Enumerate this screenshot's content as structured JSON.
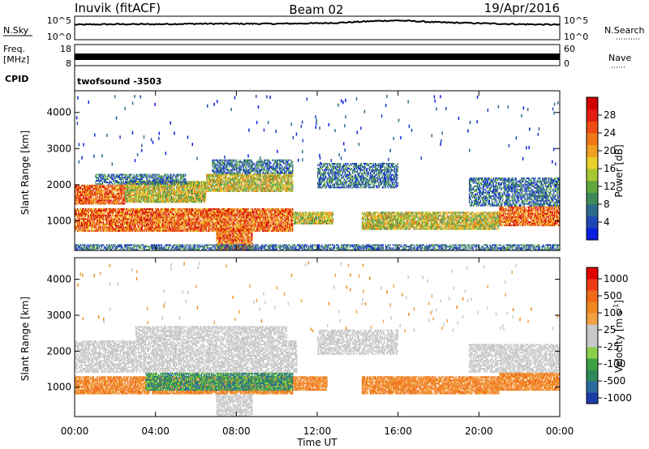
{
  "header": {
    "station": "Inuvik (fitACF)",
    "beam": "Beam 02",
    "date": "19/Apr/2016"
  },
  "side_labels": {
    "nsky": "N.Sky",
    "freq_line1": "Freq.",
    "freq_line2": "[MHz]",
    "cpid": "CPID",
    "nsearch": "N.Search",
    "nave": "Nave"
  },
  "cpid_value": "twofsound -3503",
  "chart_data": [
    {
      "type": "line",
      "name": "noise",
      "y_left_ticks": [
        "10^5",
        "10^0"
      ],
      "y_right_ticks": [
        "10^5",
        "10^0"
      ],
      "series": [
        {
          "name": "N.Sky",
          "x_hours": [
            0,
            2,
            4,
            6,
            8,
            10,
            12,
            13,
            14,
            15,
            16,
            17,
            18,
            20,
            22,
            24
          ],
          "values_log10": [
            3.2,
            3.3,
            3.3,
            3.4,
            3.4,
            3.4,
            3.5,
            3.6,
            3.8,
            4.0,
            4.1,
            3.9,
            3.7,
            3.5,
            3.3,
            3.2
          ]
        }
      ]
    },
    {
      "type": "line",
      "name": "frequency-nave",
      "y_left_ticks": [
        "18",
        "8"
      ],
      "y_right_ticks": [
        "60",
        "0"
      ],
      "series": [
        {
          "name": "Freq",
          "x_hours": [
            0,
            24
          ],
          "values": [
            11.5,
            11.5
          ]
        },
        {
          "name": "Nave",
          "x_hours": [
            0,
            24
          ],
          "values": [
            30,
            30
          ]
        }
      ]
    },
    {
      "type": "heatmap",
      "name": "power",
      "xlabel": "Time UT",
      "ylabel": "Slant Range [km]",
      "x_ticks": [
        "00:00",
        "04:00",
        "08:00",
        "12:00",
        "16:00",
        "20:00",
        "00:00"
      ],
      "y_ticks": [
        1000,
        2000,
        3000,
        4000
      ],
      "ylim": [
        180,
        4600
      ],
      "xlim_hours": [
        0,
        24
      ],
      "colorbar": {
        "label": "Power [dB]",
        "ticks": [
          "4",
          "8",
          "12",
          "16",
          "20",
          "24",
          "28"
        ],
        "colors": [
          "#0a1ee0",
          "#1e46b4",
          "#2e6a8c",
          "#3c8a5a",
          "#60a83c",
          "#a8c832",
          "#e8d02a",
          "#f0a020",
          "#f07818",
          "#ee4a14",
          "#e21c10",
          "#d00000"
        ]
      },
      "bands": [
        {
          "h0": 0.0,
          "h1": 10.8,
          "r0": 700,
          "r1": 1350,
          "level": "strong"
        },
        {
          "h0": 0.0,
          "h1": 2.5,
          "r0": 1450,
          "r1": 2000,
          "level": "strong"
        },
        {
          "h0": 2.5,
          "h1": 6.5,
          "r0": 1500,
          "r1": 2100,
          "level": "mid"
        },
        {
          "h0": 1.0,
          "h1": 5.5,
          "r0": 2000,
          "r1": 2300,
          "level": "weak"
        },
        {
          "h0": 6.5,
          "h1": 10.8,
          "r0": 1800,
          "r1": 2300,
          "level": "mid"
        },
        {
          "h0": 6.8,
          "h1": 10.8,
          "r0": 2300,
          "r1": 2700,
          "level": "weak"
        },
        {
          "h0": 7.0,
          "h1": 8.8,
          "r0": 180,
          "r1": 800,
          "level": "strong"
        },
        {
          "h0": 10.8,
          "h1": 12.8,
          "r0": 900,
          "r1": 1250,
          "level": "mid"
        },
        {
          "h0": 12.0,
          "h1": 16.0,
          "r0": 1900,
          "r1": 2600,
          "level": "weak"
        },
        {
          "h0": 14.2,
          "h1": 21.0,
          "r0": 750,
          "r1": 1250,
          "level": "mid"
        },
        {
          "h0": 21.0,
          "h1": 24.0,
          "r0": 850,
          "r1": 1400,
          "level": "strong"
        },
        {
          "h0": 19.5,
          "h1": 24.0,
          "r0": 1400,
          "r1": 2200,
          "level": "weak"
        },
        {
          "h0": 0.0,
          "h1": 24.0,
          "r0": 180,
          "r1": 350,
          "level": "weak"
        }
      ]
    },
    {
      "type": "heatmap",
      "name": "velocity",
      "xlabel": "Time UT",
      "ylabel": "Slant Range [km]",
      "x_ticks": [
        "00:00",
        "04:00",
        "08:00",
        "12:00",
        "16:00",
        "20:00",
        "00:00"
      ],
      "y_ticks": [
        1000,
        2000,
        3000,
        4000
      ],
      "ylim": [
        180,
        4600
      ],
      "xlim_hours": [
        0,
        24
      ],
      "colorbar": {
        "label_main": "Velocity [m s",
        "label_sup": "-1",
        "label_end": "]",
        "ticks": [
          "1000",
          "500",
          "100",
          "25",
          "-25",
          "-100",
          "-500",
          "-1000"
        ],
        "colors": [
          "#1c3ca8",
          "#2a6a9c",
          "#2e8a5a",
          "#3ca044",
          "#8ad04a",
          "#c8c8c8",
          "#c8c8c8",
          "#f0a040",
          "#f08820",
          "#f06818",
          "#ee3a14",
          "#e00000"
        ]
      },
      "bands": [
        {
          "h0": 0.0,
          "h1": 10.8,
          "r0": 800,
          "r1": 1300,
          "level": "orange"
        },
        {
          "h0": 3.5,
          "h1": 10.8,
          "r0": 900,
          "r1": 1400,
          "level": "green"
        },
        {
          "h0": 0.0,
          "h1": 11.0,
          "r0": 1400,
          "r1": 2300,
          "level": "gray"
        },
        {
          "h0": 3.0,
          "h1": 10.5,
          "r0": 2300,
          "r1": 2700,
          "level": "gray"
        },
        {
          "h0": 7.0,
          "h1": 8.8,
          "r0": 180,
          "r1": 800,
          "level": "gray"
        },
        {
          "h0": 10.8,
          "h1": 12.5,
          "r0": 900,
          "r1": 1300,
          "level": "orange"
        },
        {
          "h0": 12.0,
          "h1": 16.0,
          "r0": 1900,
          "r1": 2600,
          "level": "gray"
        },
        {
          "h0": 14.2,
          "h1": 21.0,
          "r0": 800,
          "r1": 1300,
          "level": "orange"
        },
        {
          "h0": 21.0,
          "h1": 24.0,
          "r0": 900,
          "r1": 1400,
          "level": "orange"
        },
        {
          "h0": 19.5,
          "h1": 24.0,
          "r0": 1400,
          "r1": 2200,
          "level": "gray"
        }
      ]
    }
  ]
}
